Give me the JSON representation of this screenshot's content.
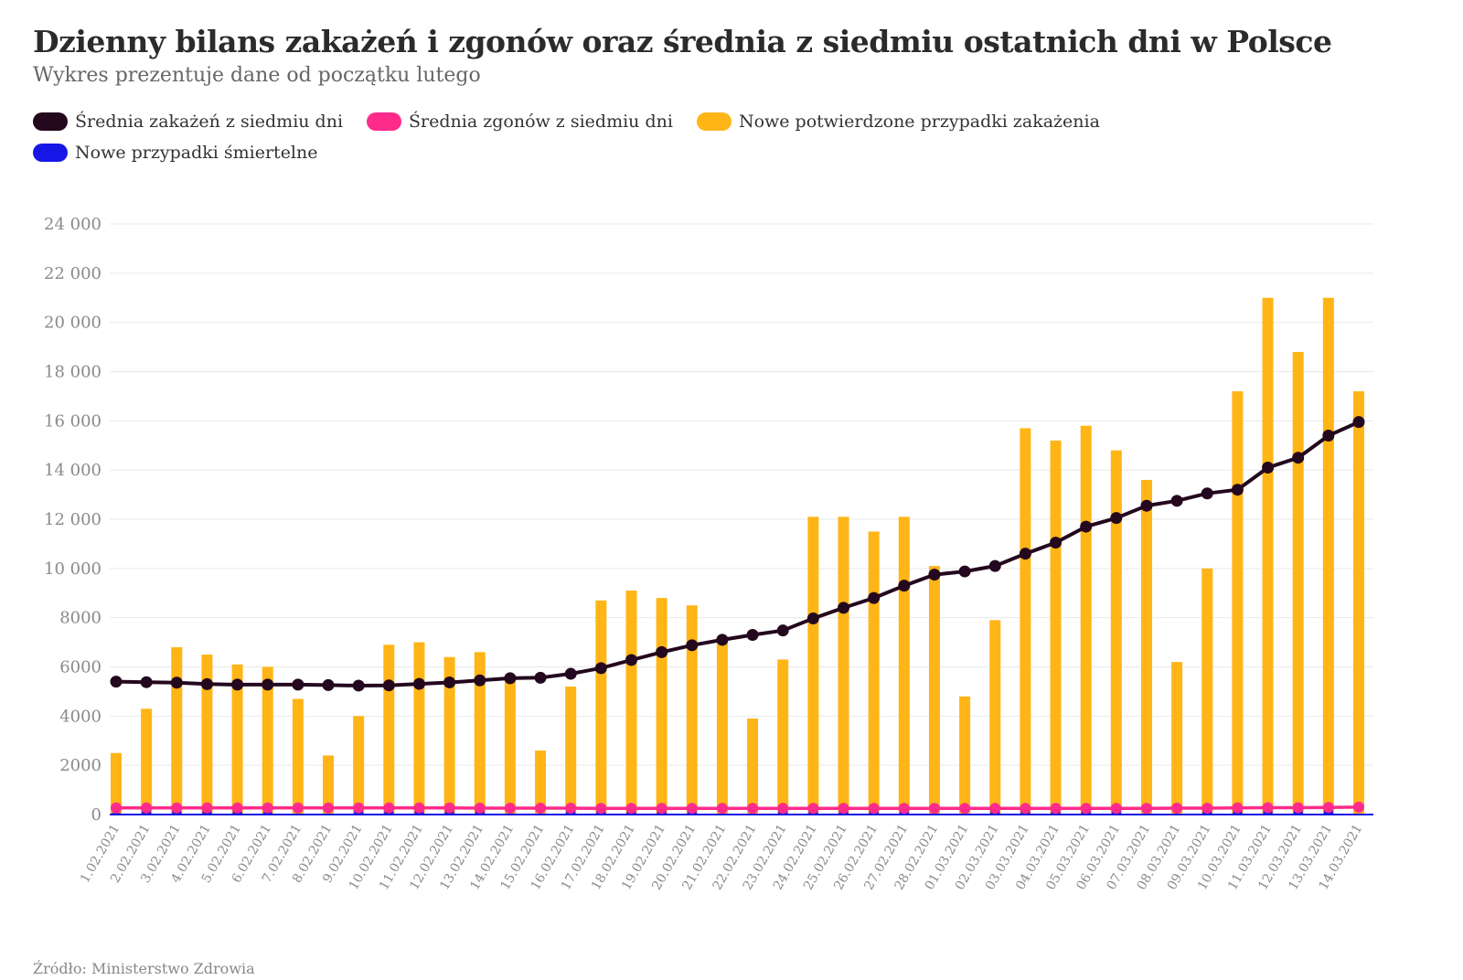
{
  "title": "Dzienny bilans zakażeń i zgonów oraz średnia z siedmiu ostatnich dni w Polsce",
  "subtitle": "Wykres prezentuje dane od początku lutego",
  "source": "Źródło: Ministerstwo Zdrowia",
  "legend": [
    {
      "label": "Średnia zakażeń z siedmiu dni",
      "color": "#24081e"
    },
    {
      "label": "Średnia zgonów z siedmiu dni",
      "color": "#ff2b8a"
    },
    {
      "label": "Nowe potwierdzone przypadki zakażenia",
      "color": "#ffb516"
    },
    {
      "label": "Nowe przypadki śmiertelne",
      "color": "#1616e6"
    }
  ],
  "chart_data": {
    "type": "bar",
    "categories": [
      "1.02.2021",
      "2.02.2021",
      "3.02.2021",
      "4.02.2021",
      "5.02.2021",
      "6.02.2021",
      "7.02.2021",
      "8.02.2021",
      "9.02.2021",
      "10.02.2021",
      "11.02.2021",
      "12.02.2021",
      "13.02.2021",
      "14.02.2021",
      "15.02.2021",
      "16.02.2021",
      "17.02.2021",
      "18.02.2021",
      "19.02.2021",
      "20.02.2021",
      "21.02.2021",
      "22.02.2021",
      "23.02.2021",
      "24.02.2021",
      "25.02.2021",
      "26.02.2021",
      "27.02.2021",
      "28.02.2021",
      "01.03.2021",
      "02.03.2021",
      "03.03.2021",
      "04.03.2021",
      "05.03.2021",
      "06.03.2021",
      "07.03.2021",
      "08.03.2021",
      "09.03.2021",
      "10.03.2021",
      "11.03.2021",
      "12.03.2021",
      "13.03.2021",
      "14.03.2021"
    ],
    "series": [
      {
        "name": "Nowe potwierdzone przypadki zakażenia",
        "type": "bar",
        "color": "#ffb516",
        "values": [
          2500,
          4300,
          6800,
          6500,
          6100,
          6000,
          4700,
          2400,
          4000,
          6900,
          7000,
          6400,
          6600,
          5500,
          2600,
          5200,
          8700,
          9100,
          8800,
          8500,
          7000,
          3900,
          6300,
          12100,
          12100,
          11500,
          12100,
          10100,
          4800,
          7900,
          15700,
          15200,
          15800,
          14800,
          13600,
          6200,
          10000,
          17200,
          21000,
          18800,
          21000,
          17200
        ]
      },
      {
        "name": "Średnia zakażeń z siedmiu dni",
        "type": "line",
        "color": "#24081e",
        "values": [
          5400,
          5380,
          5360,
          5300,
          5280,
          5280,
          5280,
          5260,
          5240,
          5250,
          5310,
          5370,
          5450,
          5540,
          5560,
          5720,
          5950,
          6280,
          6600,
          6880,
          7100,
          7300,
          7480,
          7970,
          8400,
          8800,
          9300,
          9750,
          9880,
          10100,
          10600,
          11050,
          11700,
          12050,
          12550,
          12750,
          13050,
          13200,
          14100,
          14500,
          15400,
          15950
        ]
      },
      {
        "name": "Średnia zgonów z siedmiu dni",
        "type": "line",
        "color": "#ff2b8a",
        "values": [
          270,
          270,
          270,
          270,
          270,
          270,
          270,
          270,
          270,
          270,
          270,
          270,
          260,
          260,
          260,
          260,
          250,
          250,
          250,
          250,
          250,
          250,
          250,
          250,
          250,
          250,
          250,
          250,
          250,
          250,
          250,
          250,
          250,
          250,
          250,
          260,
          260,
          270,
          280,
          280,
          290,
          300
        ]
      },
      {
        "name": "Nowe przypadki śmiertelne",
        "type": "bar",
        "color": "#1616e6",
        "values": [
          60,
          200,
          220,
          160,
          130,
          90,
          30,
          20,
          180,
          230,
          240,
          170,
          150,
          40,
          20,
          150,
          230,
          240,
          200,
          130,
          30,
          20,
          180,
          230,
          250,
          240,
          170,
          40,
          20,
          200,
          250,
          300,
          280,
          200,
          40,
          20,
          200,
          290,
          370,
          380,
          260,
          30
        ]
      }
    ],
    "yticks": [
      "24 000",
      "22 000",
      "20 000",
      "18 000",
      "16 000",
      "14 000",
      "12 000",
      "10 000",
      "8000",
      "6000",
      "4000",
      "2000",
      "0"
    ],
    "ytick_values": [
      24000,
      22000,
      20000,
      18000,
      16000,
      14000,
      12000,
      10000,
      8000,
      6000,
      4000,
      2000,
      0
    ],
    "ylim": [
      0,
      24000
    ],
    "grid": true
  }
}
